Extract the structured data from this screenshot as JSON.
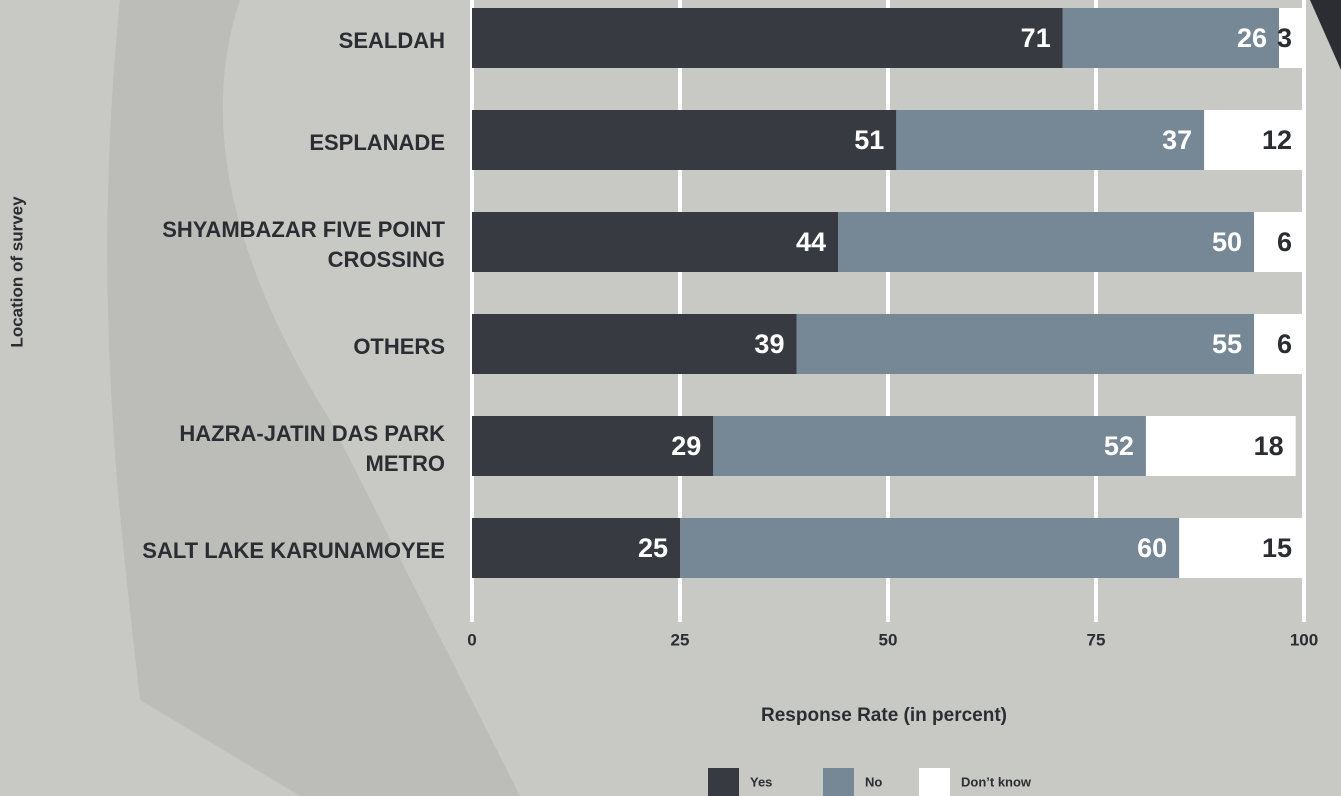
{
  "chart_data": {
    "type": "stacked-bar-horizontal",
    "categories": [
      "SEALDAH",
      "ESPLANADE",
      "SHYAMBAZAR FIVE POINT\nCROSSING",
      "OTHERS",
      "HAZRA-JATIN DAS PARK\nMETRO",
      "SALT LAKE KARUNAMOYEE"
    ],
    "series": [
      {
        "name": "Yes",
        "color": "#383a42",
        "values": [
          71,
          51,
          44,
          39,
          29,
          25
        ]
      },
      {
        "name": "No",
        "color": "#768896",
        "values": [
          26,
          37,
          50,
          55,
          52,
          60
        ]
      },
      {
        "name": "Don’t know",
        "color": "#ffffff",
        "values": [
          3,
          12,
          6,
          6,
          18,
          15
        ]
      }
    ],
    "xlim": [
      0,
      100
    ],
    "xticks": [
      0,
      25,
      50,
      75,
      100
    ],
    "grid": true,
    "xlabel": "Response Rate (in percent)",
    "ylabel": "Location of survey"
  }
}
